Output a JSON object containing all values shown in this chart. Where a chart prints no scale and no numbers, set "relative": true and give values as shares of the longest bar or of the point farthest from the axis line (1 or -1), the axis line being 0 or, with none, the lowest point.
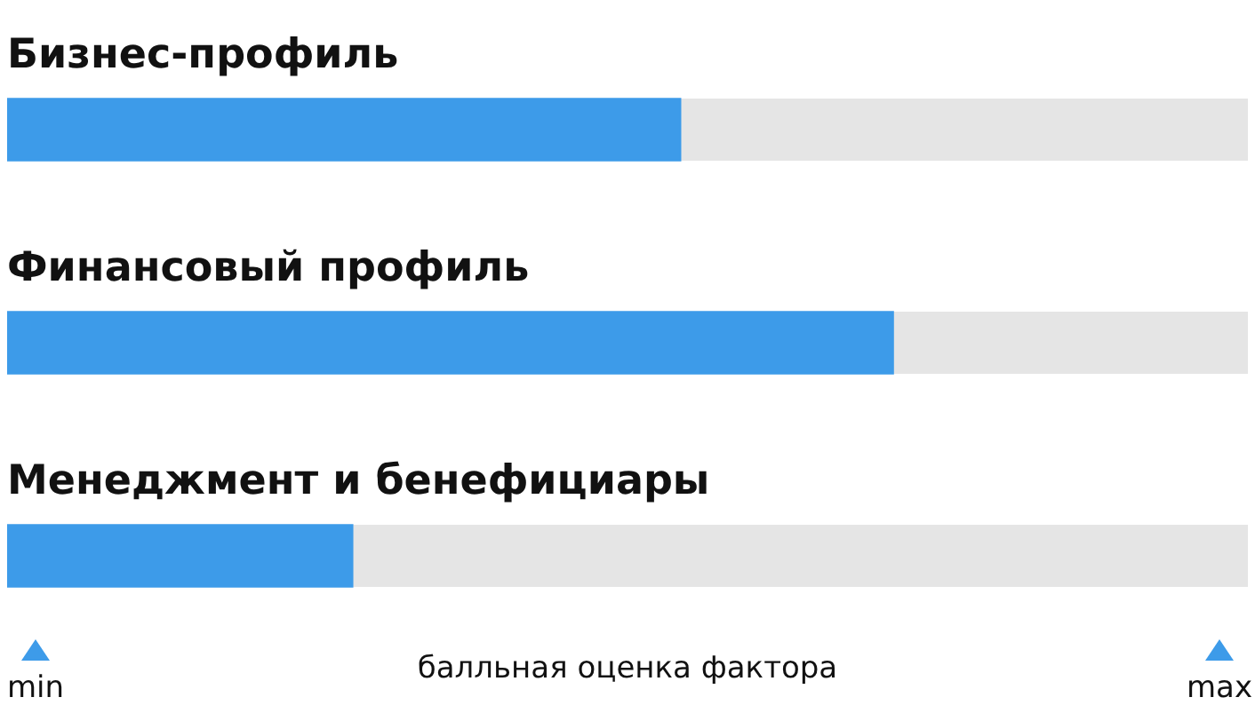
{
  "chart_data": {
    "type": "bar",
    "orientation": "horizontal",
    "relative": true,
    "categories": [
      "Бизнес-профиль",
      "Финансовый профиль",
      "Менеджмент и бенефициары"
    ],
    "series": [
      {
        "color": "#3d9be9",
        "values": [
          0.76,
          1,
          0.39
        ]
      }
    ],
    "xlabel": "балльная оценка фактора",
    "annotations": [
      "min",
      "max"
    ],
    "legend": false
  }
}
